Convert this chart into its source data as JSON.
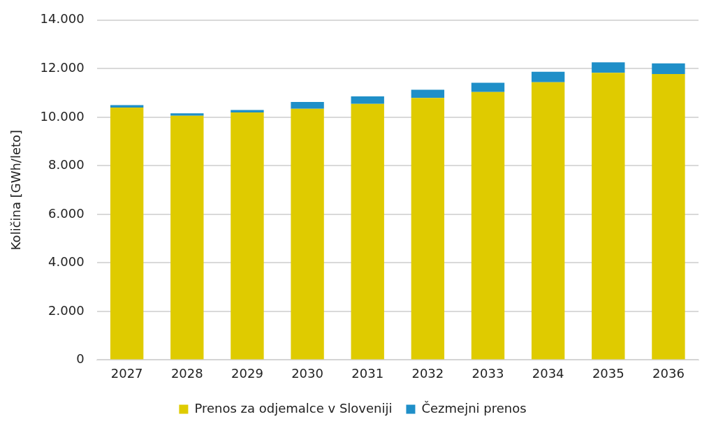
{
  "chart_data": {
    "type": "bar",
    "stacked": true,
    "categories": [
      "2027",
      "2028",
      "2029",
      "2030",
      "2031",
      "2032",
      "2033",
      "2034",
      "2035",
      "2036"
    ],
    "series": [
      {
        "name": "Prenos za odjemalce v Sloveniji",
        "color": "#dfcb00",
        "values": [
          10400,
          10060,
          10200,
          10350,
          10550,
          10790,
          11040,
          11440,
          11830,
          11780
        ]
      },
      {
        "name": "Čezmejni prenos",
        "color": "#1f8fc8",
        "values": [
          100,
          100,
          100,
          280,
          310,
          340,
          380,
          430,
          430,
          440
        ]
      }
    ],
    "ylabel": "Količina [GWh/leto]",
    "ylim": [
      0,
      14000
    ],
    "yticks": [
      {
        "value": 0,
        "label": "0"
      },
      {
        "value": 2000,
        "label": "2.000"
      },
      {
        "value": 4000,
        "label": "4.000"
      },
      {
        "value": 6000,
        "label": "6.000"
      },
      {
        "value": 8000,
        "label": "8.000"
      },
      {
        "value": 10000,
        "label": "10.000"
      },
      {
        "value": 12000,
        "label": "12.000"
      },
      {
        "value": 14000,
        "label": "14.000"
      }
    ],
    "grid": "y",
    "legend": "bottom"
  }
}
